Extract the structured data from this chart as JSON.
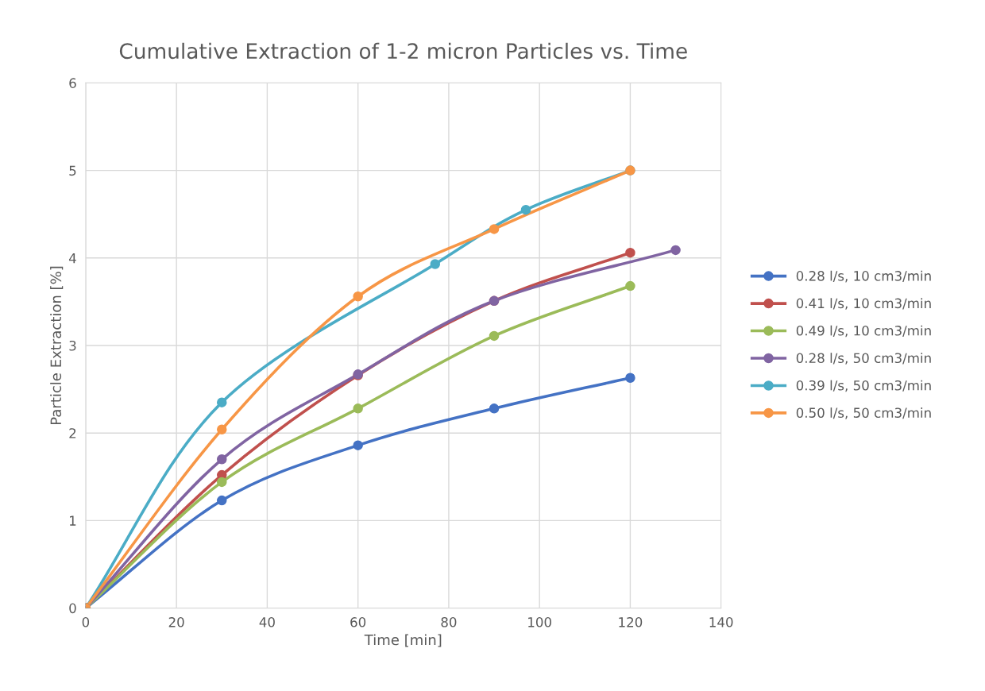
{
  "chart_data": {
    "type": "line",
    "title": "Cumulative Extraction of 1-2 micron Particles vs. Time",
    "xlabel": "Time [min]",
    "ylabel": "Particle Extraction [%]",
    "xlim": [
      0,
      140
    ],
    "xticks": [
      0,
      20,
      40,
      60,
      80,
      100,
      120,
      140
    ],
    "ylim": [
      0,
      6
    ],
    "yticks": [
      0,
      1,
      2,
      3,
      4,
      5,
      6
    ],
    "grid": true,
    "legend": "right",
    "marker": "circle",
    "line_style": "solid",
    "series": [
      {
        "name": "0.28 l/s, 10 cm3/min",
        "color": "#4472c4",
        "x": [
          0,
          30,
          60,
          90,
          120
        ],
        "values": [
          0,
          1.23,
          1.86,
          2.28,
          2.63
        ]
      },
      {
        "name": "0.41 l/s, 10 cm3/min",
        "color": "#c0504d",
        "x": [
          0,
          30,
          60,
          90,
          120
        ],
        "values": [
          0,
          1.52,
          2.66,
          3.51,
          4.06
        ]
      },
      {
        "name": "0.49 l/s, 10 cm3/min",
        "color": "#9bbb59",
        "x": [
          0,
          30,
          60,
          90,
          120
        ],
        "values": [
          0,
          1.44,
          2.28,
          3.11,
          3.68
        ]
      },
      {
        "name": "0.28 l/s, 50 cm3/min",
        "color": "#8064a2",
        "x": [
          0,
          30,
          60,
          90,
          130
        ],
        "values": [
          0,
          1.7,
          2.67,
          3.51,
          4.09
        ]
      },
      {
        "name": "0.39 l/s, 50 cm3/min",
        "color": "#4bacc6",
        "x": [
          0,
          30,
          77,
          97,
          120
        ],
        "values": [
          0,
          2.35,
          3.93,
          4.55,
          5.0
        ]
      },
      {
        "name": "0.50 l/s, 50 cm3/min",
        "color": "#f79646",
        "x": [
          0,
          30,
          60,
          90,
          120
        ],
        "values": [
          0,
          2.04,
          3.56,
          4.33,
          5.0
        ]
      }
    ]
  }
}
